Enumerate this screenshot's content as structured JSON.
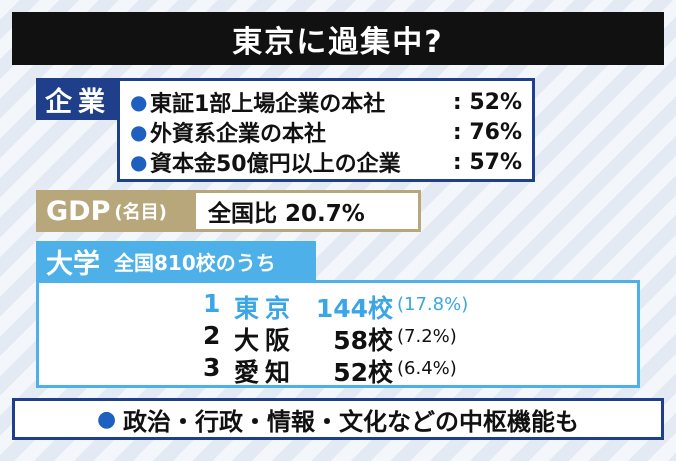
{
  "title": "東京に過集中?",
  "kigyo": {
    "tag": "企業",
    "rows": [
      {
        "label": "東証1部上場企業の本社",
        "value": ": 52%"
      },
      {
        "label": "外資系企業の本社",
        "value": ": 76%"
      },
      {
        "label": "資本金50億円以上の企業",
        "value": ": 57%"
      }
    ]
  },
  "gdp": {
    "tag": "GDP",
    "tag_sub": "(名目)",
    "value": "全国比 20.7%"
  },
  "daigaku": {
    "tag": "大学",
    "tag_sub": "全国810校のうち",
    "rows": [
      {
        "rank": "1",
        "city": "東京",
        "count": "144校",
        "pct": "(17.8%)"
      },
      {
        "rank": "2",
        "city": "大阪",
        "count": "58校",
        "pct": "(7.2%)"
      },
      {
        "rank": "3",
        "city": "愛知",
        "count": "52校",
        "pct": "(6.4%)"
      }
    ]
  },
  "footer": "政治・行政・情報・文化などの中枢機能も",
  "colors": {
    "navy": "#1f3f8a",
    "gold": "#b7a77a",
    "sky": "#4db0e8",
    "highlight": "#3aa6e6"
  }
}
